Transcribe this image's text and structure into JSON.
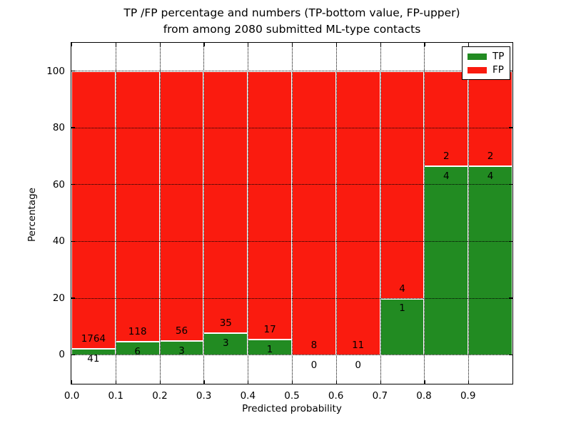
{
  "figure": {
    "title_line1": "TP /FP percentage and numbers (TP-bottom value, FP-upper)",
    "title_line2": "from among 2080 submitted ML-type contacts"
  },
  "chart_data": {
    "type": "bar",
    "subtype": "stacked-percentage-histogram",
    "title": "TP /FP percentage and numbers (TP-bottom value, FP-upper) from among 2080 submitted ML-type contacts",
    "xlabel": "Predicted probability",
    "ylabel": "Percentage",
    "total_contacts": 2080,
    "bin_starts": [
      0.0,
      0.1,
      0.2,
      0.3,
      0.4,
      0.5,
      0.6,
      0.7,
      0.8,
      0.9
    ],
    "bin_width": 0.1,
    "xtick_labels": [
      "0.0",
      "0.1",
      "0.2",
      "0.3",
      "0.4",
      "0.5",
      "0.6",
      "0.7",
      "0.8",
      "0.9"
    ],
    "yticks": [
      0,
      20,
      40,
      60,
      80,
      100
    ],
    "ylim": [
      -10,
      110
    ],
    "xlim": [
      0.0,
      1.0
    ],
    "grid": true,
    "grid_style": "dotted-black",
    "bar_edge_color": "#ffffff",
    "legend_position": "upper-right",
    "series": [
      {
        "name": "TP",
        "color": "#228b22",
        "counts": [
          41,
          6,
          3,
          3,
          1,
          0,
          0,
          1,
          4,
          4
        ]
      },
      {
        "name": "FP",
        "color": "#fa1b0f",
        "counts": [
          1764,
          118,
          56,
          35,
          17,
          8,
          11,
          4,
          2,
          2
        ]
      }
    ],
    "percent_stacks_tp_fp": [
      [
        2.27,
        97.73
      ],
      [
        4.84,
        95.16
      ],
      [
        5.08,
        94.92
      ],
      [
        7.89,
        92.11
      ],
      [
        5.56,
        94.44
      ],
      [
        0.0,
        100.0
      ],
      [
        0.0,
        100.0
      ],
      [
        20.0,
        80.0
      ],
      [
        66.67,
        33.33
      ],
      [
        66.67,
        33.33
      ]
    ]
  }
}
